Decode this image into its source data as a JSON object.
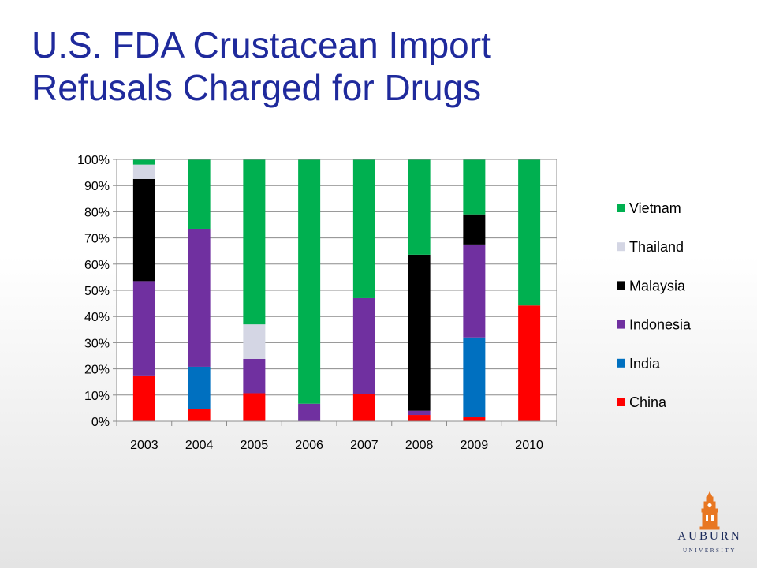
{
  "slide": {
    "title_line1": "U.S. FDA Crustacean Import",
    "title_line2": "Refusals Charged for Drugs"
  },
  "logo": {
    "wordmark": "AUBURN",
    "subtitle": "UNIVERSITY",
    "tower_icon": "clock-tower-icon",
    "tower_color": "#e87722"
  },
  "chart_data": {
    "type": "bar",
    "stacked": true,
    "percent": true,
    "categories": [
      "2003",
      "2004",
      "2005",
      "2006",
      "2007",
      "2008",
      "2009",
      "2010"
    ],
    "yticks": [
      "0%",
      "10%",
      "20%",
      "30%",
      "40%",
      "50%",
      "60%",
      "70%",
      "80%",
      "90%",
      "100%"
    ],
    "ylim": [
      0,
      100
    ],
    "grid": true,
    "legend_position": "right",
    "series": [
      {
        "name": "China",
        "color": "#ff0000",
        "values": [
          17.5,
          4.8,
          10.7,
          0,
          10.3,
          2.4,
          1.5,
          44.2
        ]
      },
      {
        "name": "India",
        "color": "#0070c0",
        "values": [
          0,
          16,
          0,
          0,
          0,
          0,
          30.5,
          0
        ]
      },
      {
        "name": "Indonesia",
        "color": "#7030a0",
        "values": [
          36,
          52.7,
          13.1,
          6.7,
          36.7,
          1.6,
          35.5,
          0
        ]
      },
      {
        "name": "Malaysia",
        "color": "#000000",
        "values": [
          39,
          0,
          0,
          0,
          0,
          59.6,
          11.5,
          0
        ]
      },
      {
        "name": "Thailand",
        "color": "#d4d6e4",
        "values": [
          5.5,
          0,
          13.2,
          0,
          0,
          0,
          0,
          0
        ]
      },
      {
        "name": "Vietnam",
        "color": "#00b050",
        "values": [
          2,
          26.5,
          63,
          93.3,
          53,
          36.4,
          21,
          55.8
        ]
      }
    ],
    "legend_order": [
      "Vietnam",
      "Thailand",
      "Malaysia",
      "Indonesia",
      "India",
      "China"
    ]
  }
}
